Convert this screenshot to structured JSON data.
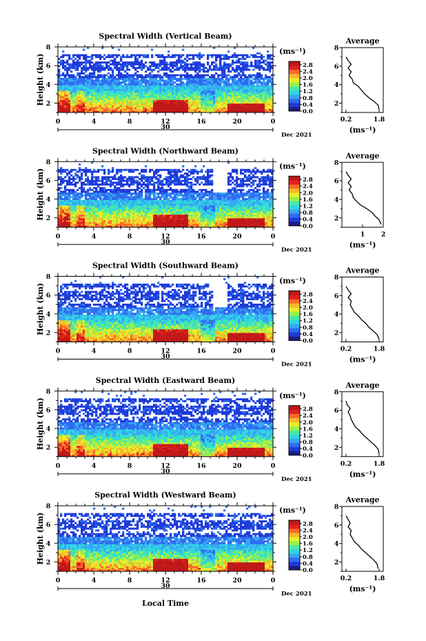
{
  "figure": {
    "xlabel": "Local Time",
    "date_label": "Dec 2021",
    "day_label": "30",
    "x_ticks": [
      "0",
      "4",
      "8",
      "12",
      "16",
      "20",
      "0"
    ],
    "y_ticks": [
      "2",
      "4",
      "6",
      "8"
    ],
    "ylabel": "Height (km)",
    "cb_unit": "(ms⁻¹)",
    "avg_title": "Average",
    "avg_xlabel": "(ms⁻¹)"
  },
  "colorscale": [
    "#1c1c80",
    "#1f3bd8",
    "#2f6cf0",
    "#38a6f4",
    "#2ed8e0",
    "#48e8a8",
    "#9af04a",
    "#e8ee2a",
    "#f8b82a",
    "#f86a2a",
    "#e0201c",
    "#c01818"
  ],
  "chart_data": [
    {
      "type": "heatmap",
      "title": "Spectral Width (Vertical Beam)",
      "x": {
        "range": [
          0,
          24
        ],
        "unit": "hour"
      },
      "y": {
        "range": [
          1,
          8
        ],
        "unit": "km"
      },
      "colorbar": {
        "ticks": [
          "0.0",
          "0.4",
          "0.8",
          "1.2",
          "1.6",
          "2.0",
          "2.4",
          "2.8"
        ],
        "range": [
          0.0,
          3.0
        ]
      },
      "average_profile": {
        "x_ticks": [
          "0.2",
          "1.8"
        ],
        "xlim": [
          0.0,
          2.0
        ],
        "ylim": [
          1,
          8
        ],
        "y_ticks": [
          "2",
          "4",
          "6",
          "8"
        ],
        "height_km": [
          1.3,
          1.8,
          2.2,
          2.6,
          3.0,
          3.4,
          3.8,
          4.2,
          4.6,
          5.0,
          5.4,
          5.8,
          6.2,
          6.6,
          7.0
        ],
        "value": [
          1.8,
          1.75,
          1.55,
          1.3,
          1.1,
          0.95,
          0.8,
          0.55,
          0.5,
          0.35,
          0.45,
          0.3,
          0.45,
          0.3,
          0.2
        ]
      }
    },
    {
      "type": "heatmap",
      "title": "Spectral Width (Northward Beam)",
      "x": {
        "range": [
          0,
          24
        ],
        "unit": "hour"
      },
      "y": {
        "range": [
          1,
          8
        ],
        "unit": "km"
      },
      "colorbar": {
        "ticks": [
          "0.0",
          "0.4",
          "0.8",
          "1.2",
          "1.6",
          "2.0",
          "2.4",
          "2.8"
        ],
        "range": [
          0.0,
          3.0
        ]
      },
      "average_profile": {
        "x_ticks": [
          "1",
          "2"
        ],
        "xlim": [
          0.0,
          2.0
        ],
        "ylim": [
          1,
          8
        ],
        "y_ticks": [
          "2",
          "4",
          "6",
          "8"
        ],
        "height_km": [
          1.3,
          1.8,
          2.2,
          2.6,
          3.0,
          3.4,
          3.8,
          4.2,
          4.6,
          5.0,
          5.4,
          5.8,
          6.2,
          6.6,
          7.0
        ],
        "value": [
          1.9,
          1.8,
          1.6,
          1.45,
          1.2,
          0.9,
          0.7,
          0.55,
          0.5,
          0.35,
          0.45,
          0.3,
          0.45,
          0.3,
          0.2
        ]
      }
    },
    {
      "type": "heatmap",
      "title": "Spectral Width (Southward Beam)",
      "x": {
        "range": [
          0,
          24
        ],
        "unit": "hour"
      },
      "y": {
        "range": [
          1,
          8
        ],
        "unit": "km"
      },
      "colorbar": {
        "ticks": [
          "0.0",
          "0.4",
          "0.8",
          "1.2",
          "1.6",
          "2.0",
          "2.4",
          "2.8"
        ],
        "range": [
          0.0,
          3.0
        ]
      },
      "average_profile": {
        "x_ticks": [
          "0.2",
          "1.8"
        ],
        "xlim": [
          0.0,
          2.0
        ],
        "ylim": [
          1,
          8
        ],
        "y_ticks": [
          "2",
          "4",
          "6",
          "8"
        ],
        "height_km": [
          1.3,
          1.8,
          2.2,
          2.6,
          3.0,
          3.4,
          3.8,
          4.2,
          4.6,
          5.0,
          5.4,
          5.8,
          6.2,
          6.6,
          7.0
        ],
        "value": [
          1.8,
          1.7,
          1.5,
          1.3,
          1.15,
          0.95,
          0.8,
          0.6,
          0.5,
          0.4,
          0.45,
          0.3,
          0.45,
          0.3,
          0.2
        ]
      }
    },
    {
      "type": "heatmap",
      "title": "Spectral Width (Eastward Beam)",
      "x": {
        "range": [
          0,
          24
        ],
        "unit": "hour"
      },
      "y": {
        "range": [
          1,
          8
        ],
        "unit": "km"
      },
      "colorbar": {
        "ticks": [
          "0.0",
          "0.4",
          "0.8",
          "1.2",
          "1.6",
          "2.0",
          "2.4",
          "2.8"
        ],
        "range": [
          0.0,
          3.0
        ]
      },
      "average_profile": {
        "x_ticks": [
          "0.2",
          "1.8"
        ],
        "xlim": [
          0.0,
          2.0
        ],
        "ylim": [
          1,
          8
        ],
        "y_ticks": [
          "2",
          "4",
          "6",
          "8"
        ],
        "height_km": [
          1.3,
          1.8,
          2.2,
          2.6,
          3.0,
          3.4,
          3.8,
          4.2,
          4.6,
          5.0,
          5.4,
          5.8,
          6.2,
          6.6,
          7.0
        ],
        "value": [
          1.8,
          1.75,
          1.6,
          1.4,
          1.2,
          1.0,
          0.85,
          0.65,
          0.55,
          0.45,
          0.4,
          0.3,
          0.4,
          0.25,
          0.2
        ]
      }
    },
    {
      "type": "heatmap",
      "title": "Spectral Width (Westward Beam)",
      "x": {
        "range": [
          0,
          24
        ],
        "unit": "hour"
      },
      "y": {
        "range": [
          1,
          8
        ],
        "unit": "km"
      },
      "colorbar": {
        "ticks": [
          "0.0",
          "0.4",
          "0.8",
          "1.2",
          "1.6",
          "2.0",
          "2.4",
          "2.8"
        ],
        "range": [
          0.0,
          3.0
        ]
      },
      "average_profile": {
        "x_ticks": [
          "0.2",
          "1.8"
        ],
        "xlim": [
          0.0,
          2.0
        ],
        "ylim": [
          1,
          8
        ],
        "y_ticks": [
          "2",
          "4",
          "6",
          "8"
        ],
        "height_km": [
          1.3,
          1.8,
          2.2,
          2.6,
          3.0,
          3.4,
          3.8,
          4.2,
          4.6,
          5.0,
          5.4,
          5.8,
          6.2,
          6.6,
          7.0
        ],
        "value": [
          1.75,
          1.7,
          1.55,
          1.35,
          1.15,
          0.95,
          0.8,
          0.6,
          0.5,
          0.4,
          0.45,
          0.3,
          0.4,
          0.3,
          0.2
        ]
      }
    }
  ]
}
